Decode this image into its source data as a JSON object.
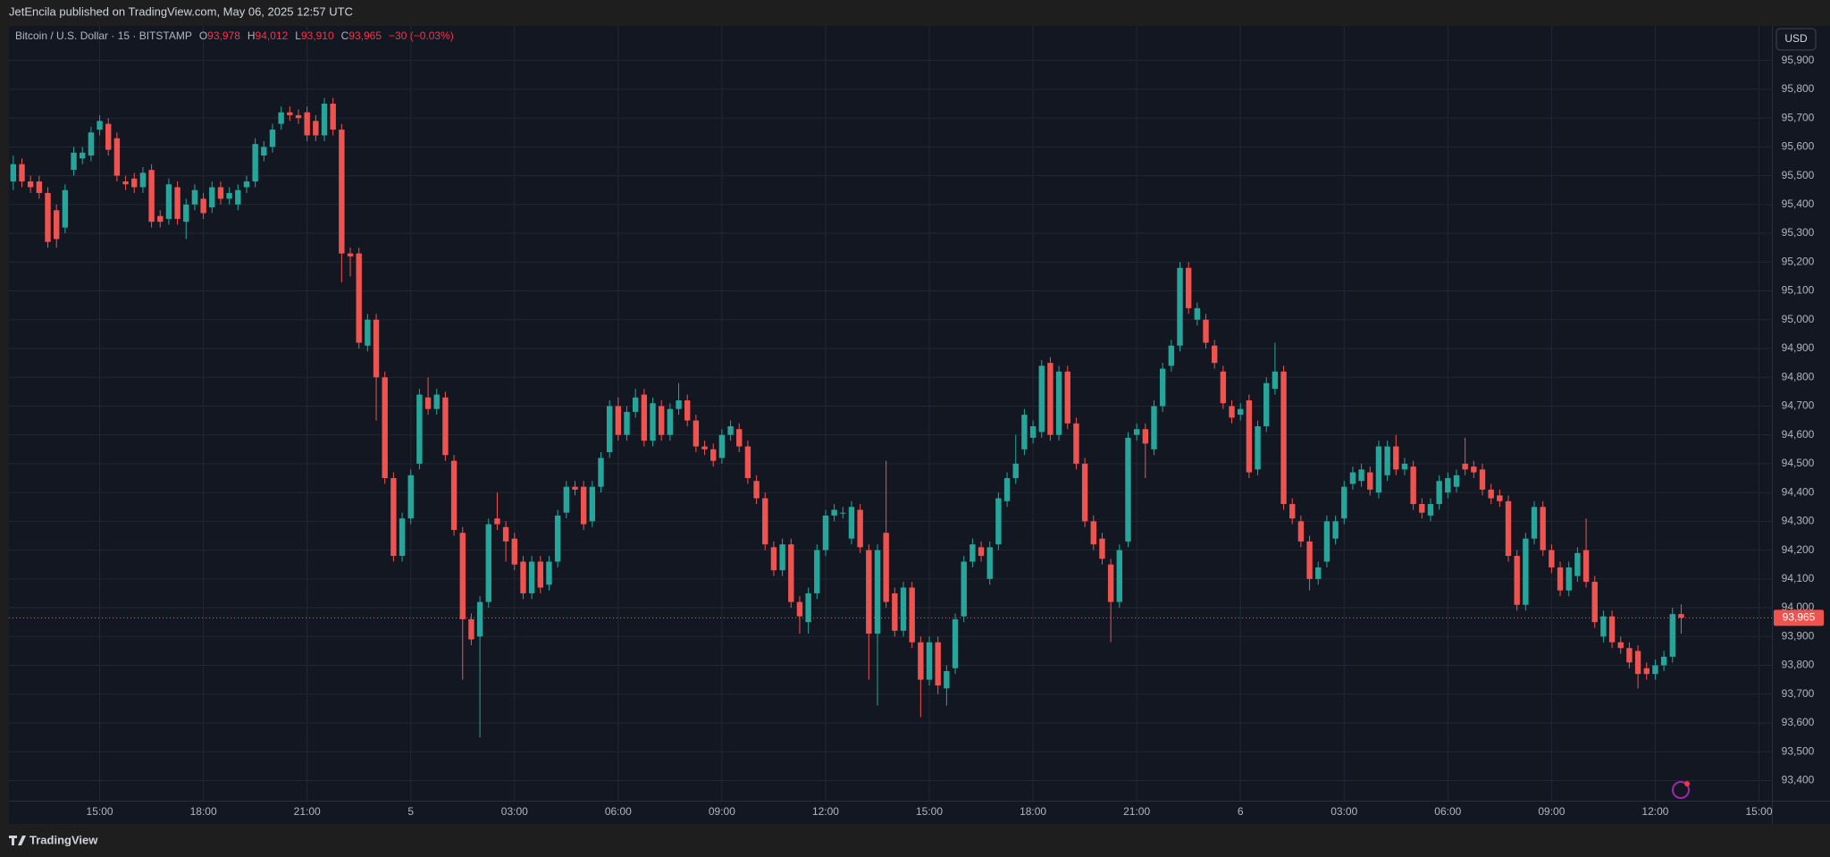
{
  "header": {
    "publisher": "JetEncila published on TradingView.com, May 06, 2025 12:57 UTC"
  },
  "footer": {
    "brand": "TradingView"
  },
  "chart_data": {
    "type": "candlestick",
    "title": "Bitcoin / U.S. Dollar · 15 · BITSTAMP",
    "legend_values": [
      {
        "key": "O",
        "label": "93,978"
      },
      {
        "key": "H",
        "label": "94,012"
      },
      {
        "key": "L",
        "label": "93,910"
      },
      {
        "key": "C",
        "label": "93,965"
      }
    ],
    "change_label": "−30 (−0.03%)",
    "currency": "USD",
    "up_color": "#26a69a",
    "down_color": "#ef5350",
    "grid": true,
    "ylim": [
      93330,
      96020
    ],
    "yticks": [
      {
        "value": 93400,
        "label": "93,400"
      },
      {
        "value": 93500,
        "label": "93,500"
      },
      {
        "value": 93600,
        "label": "93,600"
      },
      {
        "value": 93700,
        "label": "93,700"
      },
      {
        "value": 93800,
        "label": "93,800"
      },
      {
        "value": 93900,
        "label": "93,900"
      },
      {
        "value": 94000,
        "label": "94,000"
      },
      {
        "value": 94100,
        "label": "94,100"
      },
      {
        "value": 94200,
        "label": "94,200"
      },
      {
        "value": 94300,
        "label": "94,300"
      },
      {
        "value": 94400,
        "label": "94,400"
      },
      {
        "value": 94500,
        "label": "94,500"
      },
      {
        "value": 94600,
        "label": "94,600"
      },
      {
        "value": 94700,
        "label": "94,700"
      },
      {
        "value": 94800,
        "label": "94,800"
      },
      {
        "value": 94900,
        "label": "94,900"
      },
      {
        "value": 95000,
        "label": "95,000"
      },
      {
        "value": 95100,
        "label": "95,100"
      },
      {
        "value": 95200,
        "label": "95,200"
      },
      {
        "value": 95300,
        "label": "95,300"
      },
      {
        "value": 95400,
        "label": "95,400"
      },
      {
        "value": 95500,
        "label": "95,500"
      },
      {
        "value": 95600,
        "label": "95,600"
      },
      {
        "value": 95700,
        "label": "95,700"
      },
      {
        "value": 95800,
        "label": "95,800"
      },
      {
        "value": 95900,
        "label": "95,900"
      }
    ],
    "last_price": {
      "value": 93965,
      "label": "93,965"
    },
    "categories": [
      null,
      null,
      null,
      null,
      null,
      null,
      null,
      null,
      null,
      null,
      "15:00",
      null,
      null,
      null,
      null,
      null,
      null,
      null,
      null,
      null,
      null,
      null,
      "18:00",
      null,
      null,
      null,
      null,
      null,
      null,
      null,
      null,
      null,
      null,
      null,
      "21:00",
      null,
      null,
      null,
      null,
      null,
      null,
      null,
      null,
      null,
      null,
      null,
      "5",
      null,
      null,
      null,
      null,
      null,
      null,
      null,
      null,
      null,
      null,
      null,
      "03:00",
      null,
      null,
      null,
      null,
      null,
      null,
      null,
      null,
      null,
      null,
      null,
      "06:00",
      null,
      null,
      null,
      null,
      null,
      null,
      null,
      null,
      null,
      null,
      null,
      "09:00",
      null,
      null,
      null,
      null,
      null,
      null,
      null,
      null,
      null,
      null,
      null,
      "12:00",
      null,
      null,
      null,
      null,
      null,
      null,
      null,
      null,
      null,
      null,
      null,
      "15:00",
      null,
      null,
      null,
      null,
      null,
      null,
      null,
      null,
      null,
      null,
      null,
      "18:00",
      null,
      null,
      null,
      null,
      null,
      null,
      null,
      null,
      null,
      null,
      null,
      "21:00",
      null,
      null,
      null,
      null,
      null,
      null,
      null,
      null,
      null,
      null,
      null,
      "6",
      null,
      null,
      null,
      null,
      null,
      null,
      null,
      null,
      null,
      null,
      null,
      "03:00",
      null,
      null,
      null,
      null,
      null,
      null,
      null,
      null,
      null,
      null,
      null,
      "06:00",
      null,
      null,
      null,
      null,
      null,
      null,
      null,
      null,
      null,
      null,
      null,
      "09:00",
      null,
      null,
      null,
      null,
      null,
      null,
      null,
      null,
      null,
      null,
      null,
      "12:00",
      null,
      null,
      null,
      null,
      null,
      null,
      null,
      null,
      null,
      null,
      null,
      "15:00",
      null
    ],
    "open": [
      95480,
      95540,
      95480,
      95480,
      95440,
      95380,
      95320,
      95520,
      95560,
      95570,
      95660,
      95680,
      95630,
      95480,
      95490,
      95460,
      95520,
      95360,
      95350,
      95460,
      95340,
      95400,
      95420,
      95390,
      95460,
      95420,
      95400,
      95460,
      95480,
      95570,
      95600,
      95680,
      95720,
      95710,
      95720,
      95690,
      95640,
      95750,
      95660,
      95230,
      95230,
      94910,
      95000,
      94800,
      94450,
      94180,
      94310,
      94500,
      94730,
      94690,
      94730,
      94510,
      94260,
      93960,
      93900,
      94020,
      94310,
      94280,
      94240,
      94160,
      94050,
      94160,
      94080,
      94160,
      94330,
      94420,
      94420,
      94300,
      94420,
      94540,
      94700,
      94600,
      94680,
      94740,
      94580,
      94700,
      94600,
      94690,
      94720,
      94650,
      94560,
      94550,
      94520,
      94600,
      94620,
      94560,
      94440,
      94380,
      94210,
      94130,
      94220,
      94020,
      93950,
      94050,
      94200,
      94320,
      94330,
      94240,
      94340,
      94200,
      93910,
      94260,
      94050,
      93920,
      94070,
      93880,
      93750,
      93880,
      93720,
      93790,
      93970,
      94160,
      94210,
      94100,
      94220,
      94370,
      94450,
      94550,
      94590,
      94610,
      94850,
      94600,
      94820,
      94640,
      94500,
      94300,
      94240,
      94150,
      94020,
      94230,
      94600,
      94620,
      94550,
      94700,
      94840,
      94910,
      95180,
      95000,
      95000,
      94910,
      94820,
      94700,
      94670,
      94720,
      94480,
      94630,
      94760,
      94820,
      94360,
      94300,
      94230,
      94100,
      94160,
      94240,
      94310,
      94430,
      94440,
      94470,
      94400,
      94460,
      94560,
      94480,
      94490,
      94360,
      94320,
      94360,
      94400,
      94420,
      94500,
      94490,
      94480,
      94410,
      94390,
      94370,
      94180,
      94010,
      94240,
      94350,
      94200,
      94140,
      94060,
      94110,
      94200,
      94090,
      93900,
      93970,
      93880,
      93860,
      93850,
      93790,
      93770,
      93800,
      93830,
      93978,
      null,
      null,
      null,
      null,
      null,
      null,
      null,
      null,
      null,
      null
    ],
    "high": [
      95570,
      95560,
      95500,
      95500,
      95460,
      95400,
      95470,
      95600,
      95600,
      95670,
      95710,
      95700,
      95650,
      95500,
      95510,
      95530,
      95540,
      95380,
      95490,
      95480,
      95420,
      95470,
      95440,
      95480,
      95480,
      95460,
      95470,
      95500,
      95630,
      95620,
      95680,
      95740,
      95740,
      95730,
      95740,
      95710,
      95770,
      95770,
      95680,
      95250,
      95250,
      95020,
      95020,
      94820,
      94470,
      94330,
      94480,
      94760,
      94800,
      94760,
      94750,
      94530,
      94280,
      93980,
      94040,
      94310,
      94400,
      94300,
      94260,
      94180,
      94180,
      94180,
      94180,
      94340,
      94440,
      94440,
      94440,
      94440,
      94540,
      94720,
      94730,
      94700,
      94760,
      94760,
      94730,
      94720,
      94710,
      94780,
      94740,
      94670,
      94580,
      94570,
      94620,
      94650,
      94640,
      94580,
      94460,
      94400,
      94230,
      94240,
      94240,
      94040,
      94070,
      94220,
      94340,
      94360,
      94350,
      94370,
      94360,
      94220,
      94220,
      94510,
      94070,
      94090,
      94090,
      93900,
      93900,
      93900,
      93800,
      93980,
      94180,
      94240,
      94230,
      94230,
      94400,
      94470,
      94600,
      94690,
      94650,
      94860,
      94870,
      94840,
      94840,
      94660,
      94520,
      94320,
      94260,
      94170,
      94220,
      94610,
      94640,
      94640,
      94720,
      94850,
      94930,
      95200,
      95200,
      95060,
      95020,
      94930,
      94840,
      94720,
      94710,
      94740,
      94650,
      94800,
      94920,
      94840,
      94380,
      94320,
      94250,
      94160,
      94320,
      94320,
      94440,
      94490,
      94500,
      94490,
      94580,
      94580,
      94600,
      94520,
      94510,
      94380,
      94380,
      94460,
      94470,
      94480,
      94590,
      94510,
      94500,
      94430,
      94410,
      94390,
      94200,
      94260,
      94370,
      94370,
      94220,
      94160,
      94160,
      94210,
      94310,
      94110,
      93990,
      93990,
      93900,
      93880,
      93870,
      93810,
      93820,
      93850,
      94000,
      94012,
      null,
      null,
      null,
      null,
      null,
      null,
      null,
      null,
      null,
      null
    ],
    "low": [
      95450,
      95460,
      95440,
      95420,
      95250,
      95250,
      95300,
      95500,
      95540,
      95550,
      95640,
      95570,
      95480,
      95450,
      95440,
      95440,
      95320,
      95320,
      95330,
      95330,
      95280,
      95380,
      95350,
      95370,
      95400,
      95400,
      95380,
      95440,
      95460,
      95550,
      95580,
      95660,
      95690,
      95680,
      95620,
      95620,
      95620,
      95640,
      95130,
      95150,
      94900,
      94890,
      94650,
      94430,
      94160,
      94160,
      94290,
      94480,
      94670,
      94670,
      94510,
      94250,
      93750,
      93870,
      93550,
      94000,
      94270,
      94160,
      94130,
      94030,
      94030,
      94050,
      94060,
      94140,
      94310,
      94390,
      94270,
      94280,
      94400,
      94520,
      94580,
      94580,
      94660,
      94560,
      94560,
      94580,
      94580,
      94670,
      94630,
      94540,
      94530,
      94490,
      94500,
      94580,
      94540,
      94430,
      94360,
      94200,
      94110,
      94110,
      94000,
      93910,
      93910,
      94030,
      94180,
      94300,
      94310,
      94220,
      94190,
      93750,
      93660,
      94000,
      93900,
      93900,
      93860,
      93620,
      93730,
      93700,
      93660,
      93770,
      93950,
      94140,
      94160,
      94080,
      94200,
      94350,
      94430,
      94530,
      94570,
      94590,
      94580,
      94580,
      94620,
      94480,
      94280,
      94200,
      94150,
      93880,
      94000,
      94210,
      94580,
      94450,
      94530,
      94680,
      94820,
      94890,
      95020,
      94980,
      94900,
      94830,
      94690,
      94640,
      94650,
      94450,
      94460,
      94610,
      94740,
      94340,
      94290,
      94210,
      94060,
      94080,
      94140,
      94220,
      94290,
      94410,
      94420,
      94390,
      94380,
      94440,
      94460,
      94460,
      94340,
      94310,
      94300,
      94340,
      94380,
      94400,
      94460,
      94450,
      94390,
      94360,
      94350,
      94160,
      93990,
      93990,
      94220,
      94180,
      94120,
      94040,
      94040,
      94090,
      94070,
      93930,
      93880,
      93860,
      93840,
      93790,
      93720,
      93750,
      93750,
      93780,
      93810,
      93910,
      null,
      null,
      null,
      null,
      null,
      null,
      null,
      null,
      null,
      null
    ],
    "close": [
      95540,
      95480,
      95460,
      95440,
      95270,
      95280,
      95450,
      95580,
      95580,
      95650,
      95690,
      95590,
      95500,
      95470,
      95460,
      95510,
      95340,
      95340,
      95470,
      95350,
      95400,
      95450,
      95370,
      95460,
      95420,
      95440,
      95450,
      95480,
      95610,
      95600,
      95660,
      95720,
      95710,
      95700,
      95640,
      95640,
      95750,
      95660,
      95230,
      95220,
      94920,
      95000,
      94800,
      94450,
      94180,
      94310,
      94460,
      94740,
      94690,
      94740,
      94530,
      94270,
      93960,
      93890,
      94020,
      94290,
      94290,
      94230,
      94150,
      94050,
      94160,
      94070,
      94160,
      94320,
      94420,
      94410,
      94290,
      94420,
      94520,
      94700,
      94600,
      94680,
      94730,
      94580,
      94710,
      94600,
      94690,
      94720,
      94650,
      94560,
      94550,
      94510,
      94600,
      94630,
      94560,
      94450,
      94380,
      94220,
      94130,
      94220,
      94020,
      93970,
      94050,
      94200,
      94320,
      94340,
      94330,
      94350,
      94210,
      93910,
      94200,
      94020,
      93920,
      94070,
      93880,
      93750,
      93880,
      93730,
      93780,
      93960,
      94160,
      94220,
      94180,
      94210,
      94380,
      94450,
      94500,
      94670,
      94630,
      94840,
      94600,
      94820,
      94640,
      94500,
      94300,
      94220,
      94170,
      94020,
      94200,
      94590,
      94620,
      94570,
      94700,
      94830,
      94910,
      95180,
      95040,
      95040,
      94920,
      94850,
      94710,
      94660,
      94690,
      94470,
      94630,
      94780,
      94820,
      94360,
      94310,
      94230,
      94100,
      94140,
      94300,
      94300,
      94420,
      94470,
      94480,
      94410,
      94560,
      94560,
      94480,
      94500,
      94360,
      94330,
      94360,
      94440,
      94450,
      94460,
      94480,
      94470,
      94410,
      94380,
      94370,
      94180,
      94010,
      94240,
      94350,
      94200,
      94140,
      94060,
      94140,
      94190,
      94090,
      93950,
      93970,
      93880,
      93860,
      93810,
      93770,
      93770,
      93800,
      93830,
      93978,
      93965,
      null,
      null,
      null,
      null,
      null,
      null,
      null,
      null,
      null,
      null
    ]
  }
}
